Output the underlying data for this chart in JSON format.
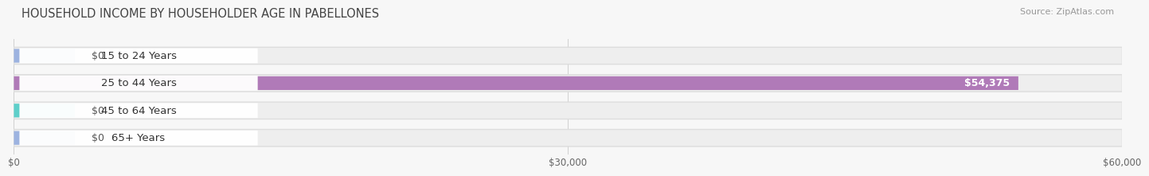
{
  "title": "HOUSEHOLD INCOME BY HOUSEHOLDER AGE IN PABELLONES",
  "source": "Source: ZipAtlas.com",
  "categories": [
    "15 to 24 Years",
    "25 to 44 Years",
    "45 to 64 Years",
    "65+ Years"
  ],
  "values": [
    0,
    54375,
    0,
    0
  ],
  "bar_colors": [
    "#9db3e0",
    "#b07ab8",
    "#5ecfca",
    "#9db3e0"
  ],
  "track_color": "#eeeeee",
  "track_border_color": "#e0e0e0",
  "xmax": 60000,
  "xticks": [
    0,
    30000,
    60000
  ],
  "xticklabels": [
    "$0",
    "$30,000",
    "$60,000"
  ],
  "value_labels": [
    "$0",
    "$54,375",
    "$0",
    "$0"
  ],
  "background_color": "#f7f7f7",
  "title_fontsize": 10.5,
  "source_fontsize": 8,
  "label_fontsize": 9.5,
  "value_fontsize": 9
}
